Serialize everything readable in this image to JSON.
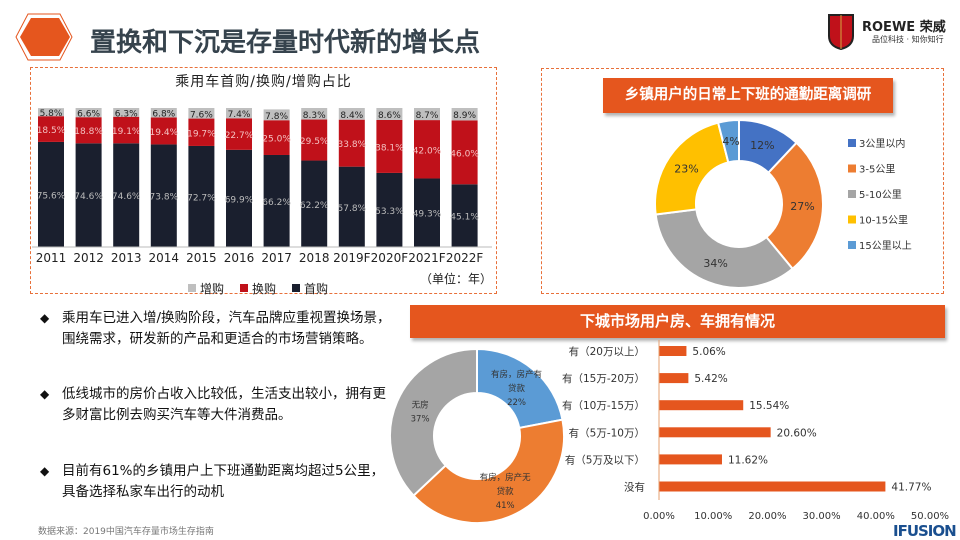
{
  "header": {
    "title": "置换和下沉是存量时代新的增长点",
    "logo": {
      "brand": "ROEWE 荣威",
      "slogan": "品位科技 · 知你知行"
    }
  },
  "bullets": [
    "乘用车已进入增/换购阶段，汽车品牌应重视置换场景，围绕需求，研发新的产品和更适合的市场营销策略。",
    "低线城市的房价占收入比较低，生活支出较小，拥有更多财富比例去购买汽车等大件消费品。",
    "目前有61%的乡镇用户上下班通勤距离均超过5公里，具备选择私家车出行的动机"
  ],
  "source": "数据来源：2019中国汽车存量市场生存指南",
  "footer_logo": "IFUSION",
  "panels": {
    "commute_title": "乡镇用户的日常上下班的通勤距离调研",
    "housing_title": "下城市场用户房、车拥有情况"
  },
  "chart_data": [
    {
      "type": "bar",
      "stacked": true,
      "title": "乘用车首购/换购/增购占比",
      "unit_note": "（单位：年）",
      "categories": [
        "2011",
        "2012",
        "2013",
        "2014",
        "2015",
        "2016",
        "2017",
        "2018",
        "2019F",
        "2020F",
        "2021F",
        "2022F"
      ],
      "series": [
        {
          "name": "首购",
          "color": "#1a1f2e",
          "values": [
            75.6,
            74.6,
            74.6,
            73.8,
            72.7,
            69.9,
            66.2,
            62.2,
            57.8,
            53.3,
            49.3,
            45.1
          ]
        },
        {
          "name": "换购",
          "color": "#c0111a",
          "values": [
            18.5,
            18.8,
            19.1,
            19.4,
            19.7,
            22.7,
            25.0,
            29.5,
            33.8,
            38.1,
            42.0,
            46.0
          ]
        },
        {
          "name": "增购",
          "color": "#bfbfbf",
          "values": [
            5.8,
            6.6,
            6.3,
            6.8,
            7.6,
            7.4,
            7.8,
            8.3,
            8.4,
            8.6,
            8.7,
            8.9
          ]
        }
      ],
      "legend_order": [
        "增购",
        "换购",
        "首购"
      ],
      "legend": "bottom"
    },
    {
      "type": "pie",
      "donut": true,
      "legend": "right",
      "labels": [
        "3公里以内",
        "3-5公里",
        "5-10公里",
        "10-15公里",
        "15公里以上"
      ],
      "values": [
        12,
        27,
        34,
        23,
        4
      ],
      "colors": [
        "#4472c4",
        "#ed7d31",
        "#a5a5a5",
        "#ffc000",
        "#5b9bd5"
      ]
    },
    {
      "type": "pie",
      "donut": true,
      "labels": [
        "有房，房产有贷款",
        "有房，房产无贷款",
        "无房"
      ],
      "values": [
        22,
        41,
        37
      ],
      "colors": [
        "#5b9bd5",
        "#ed7d31",
        "#a5a5a5"
      ]
    },
    {
      "type": "bar",
      "orientation": "horizontal",
      "color": "#e5561e",
      "categories": [
        "有（20万以上）",
        "有（15万-20万）",
        "有（10万-15万）",
        "有（5万-10万）",
        "有（5万及以下）",
        "没有"
      ],
      "values": [
        5.06,
        5.42,
        15.54,
        20.6,
        11.62,
        41.77
      ],
      "value_labels": [
        "5.06%",
        "5.42%",
        "15.54%",
        "20.60%",
        "11.62%",
        "41.77%"
      ],
      "xlim": [
        0,
        50
      ],
      "xticks": [
        "0.00%",
        "10.00%",
        "20.00%",
        "30.00%",
        "40.00%",
        "50.00%"
      ]
    }
  ]
}
